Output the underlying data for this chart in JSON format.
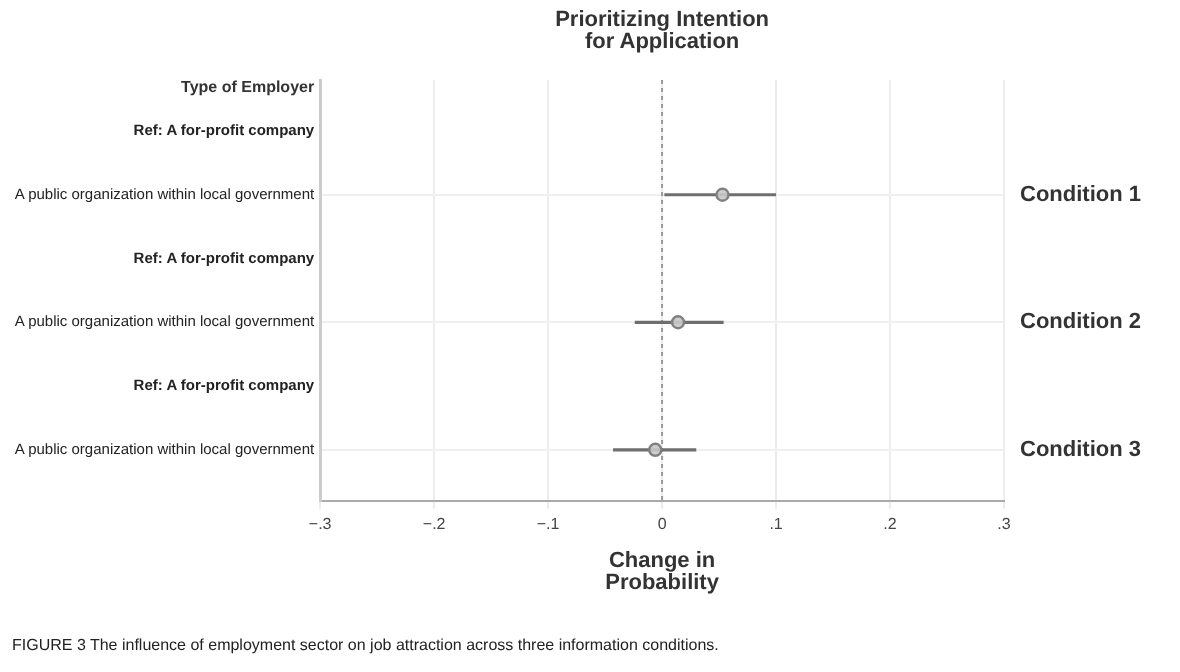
{
  "chart_data": {
    "type": "scatter",
    "orientation": "horizontal",
    "title": "Prioritizing Intention for Application",
    "xlabel": "Change in Probability",
    "categories": [
      "Ref: A for-profit company",
      "A public organization within local government",
      "Ref: A for-profit company",
      "A public organization within local government",
      "Ref: A for-profit company",
      "A public organization within local government"
    ],
    "values": [
      null,
      0.053,
      null,
      0.014,
      null,
      -0.006
    ],
    "errors": [
      null,
      [
        0.002,
        0.1
      ],
      null,
      [
        -0.024,
        0.054
      ],
      null,
      [
        -0.043,
        0.03
      ]
    ],
    "color": "#808080",
    "marker": "circle",
    "legend": false,
    "grid": true,
    "xlim": [
      -0.3,
      0.3
    ],
    "xticks": [
      {
        "value": -0.3,
        "label": "−.3"
      },
      {
        "value": -0.2,
        "label": "−.2"
      },
      {
        "value": -0.1,
        "label": "−.1"
      },
      0,
      {
        "value": 0.1,
        "label": ".1"
      },
      {
        "value": 0.2,
        "label": ".2"
      },
      {
        "value": 0.3,
        "label": ".3"
      }
    ],
    "ref_lines": [
      {
        "axis": "x",
        "value": 0,
        "color": "#999999",
        "line_style": "dotted"
      }
    ],
    "annotations": [
      "Type of Employer",
      "Condition 1",
      "Condition 2",
      "Condition 3",
      "FIGURE 3 The influence of employment sector on job attraction across three information conditions."
    ]
  }
}
